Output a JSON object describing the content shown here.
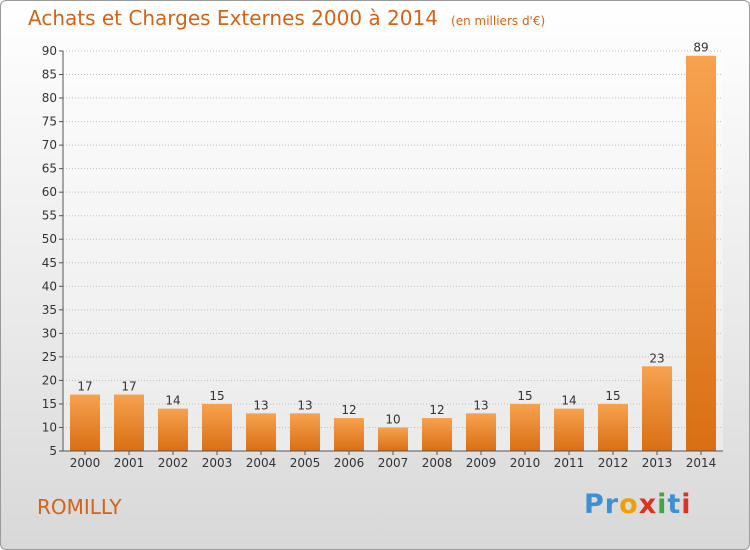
{
  "title": "Achats et Charges Externes 2000 à 2014",
  "subtitle": "(en milliers d'€)",
  "commune": "ROMILLY",
  "logo": {
    "letters": [
      "P",
      "r",
      "o",
      "x",
      "i",
      "t",
      "i"
    ],
    "colors": [
      "#3d8fd6",
      "#3d8fd6",
      "#f0a000",
      "#e03020",
      "#3da83d",
      "#3d8fd6",
      "#e03020"
    ]
  },
  "colors": {
    "bar_light": "#f7a24f",
    "bar_dark": "#d96f14",
    "accent": "#d26418"
  },
  "chart_data": {
    "type": "bar",
    "categories": [
      "2000",
      "2001",
      "2002",
      "2003",
      "2004",
      "2005",
      "2006",
      "2007",
      "2008",
      "2009",
      "2010",
      "2011",
      "2012",
      "2013",
      "2014"
    ],
    "values": [
      17,
      17,
      14,
      15,
      13,
      13,
      12,
      10,
      12,
      13,
      15,
      14,
      15,
      23,
      89
    ],
    "ylim": [
      5,
      90
    ],
    "yticks": [
      5,
      10,
      15,
      20,
      25,
      30,
      35,
      40,
      45,
      50,
      55,
      60,
      65,
      70,
      75,
      80,
      85,
      90
    ],
    "grid": true
  }
}
